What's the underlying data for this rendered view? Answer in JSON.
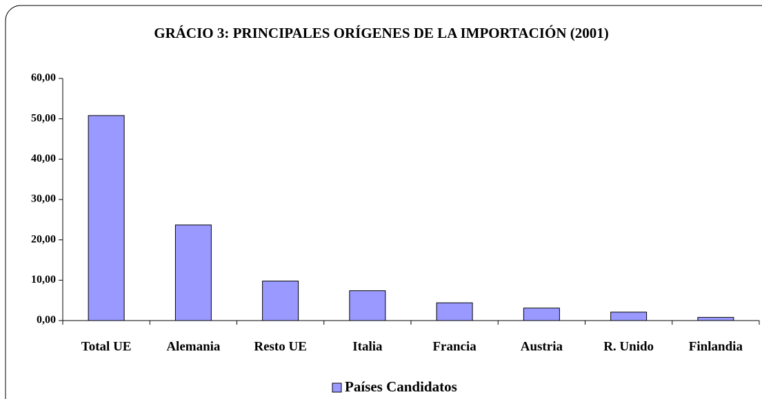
{
  "chart_data": {
    "type": "bar",
    "title": "GRÁCIO 3: PRINCIPALES ORÍGENES DE LA IMPORTACIÓN (2001)",
    "categories": [
      "Total UE",
      "Alemania",
      "Resto UE",
      "Italia",
      "Francia",
      "Austria",
      "R. Unido",
      "Finlandia"
    ],
    "series": [
      {
        "name": "Países Candidatos",
        "color": "#9999ff",
        "values": [
          50.8,
          23.7,
          9.8,
          7.4,
          4.4,
          3.1,
          2.1,
          0.8
        ]
      }
    ],
    "ylim": [
      0,
      60
    ],
    "yticks": [
      {
        "value": 0,
        "label": "0,00"
      },
      {
        "value": 10,
        "label": "10,00"
      },
      {
        "value": 20,
        "label": "20,00"
      },
      {
        "value": 30,
        "label": "30,00"
      },
      {
        "value": 40,
        "label": "40,00"
      },
      {
        "value": 50,
        "label": "50,00"
      },
      {
        "value": 60,
        "label": "60,00"
      }
    ],
    "grid": false,
    "legend": "bottom"
  }
}
